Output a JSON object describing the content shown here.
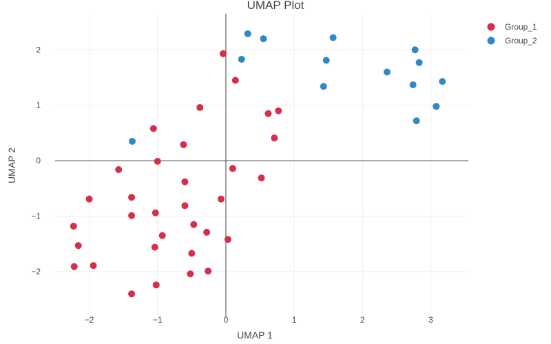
{
  "chart_data": {
    "type": "scatter",
    "title": "UMAP Plot",
    "xlabel": "UMAP 1",
    "ylabel": "UMAP 2",
    "xlim": [
      -2.5,
      3.55
    ],
    "ylim": [
      -2.82,
      2.65
    ],
    "xticks": [
      -2,
      -1,
      0,
      1,
      2,
      3
    ],
    "yticks": [
      -2,
      -1,
      0,
      1,
      2
    ],
    "xtick_labels": [
      "−2",
      "−1",
      "0",
      "1",
      "2",
      "3"
    ],
    "ytick_labels": [
      "−2",
      "−1",
      "0",
      "1",
      "2"
    ],
    "grid": true,
    "zero_lines": true,
    "legend_position": "top-right",
    "series": [
      {
        "name": "Group_1",
        "color": "#d62e4b",
        "points": [
          [
            -0.04,
            1.93
          ],
          [
            0.14,
            1.45
          ],
          [
            -0.38,
            0.96
          ],
          [
            0.62,
            0.85
          ],
          [
            0.77,
            0.9
          ],
          [
            -1.06,
            0.58
          ],
          [
            0.71,
            0.41
          ],
          [
            -0.62,
            0.29
          ],
          [
            -1.0,
            -0.01
          ],
          [
            -1.57,
            -0.16
          ],
          [
            0.1,
            -0.14
          ],
          [
            -0.6,
            -0.38
          ],
          [
            0.52,
            -0.31
          ],
          [
            -2.0,
            -0.69
          ],
          [
            -1.38,
            -0.66
          ],
          [
            -0.6,
            -0.81
          ],
          [
            -0.07,
            -0.69
          ],
          [
            -1.38,
            -0.99
          ],
          [
            -1.03,
            -0.94
          ],
          [
            -2.23,
            -1.18
          ],
          [
            -0.47,
            -1.15
          ],
          [
            -0.28,
            -1.29
          ],
          [
            -0.93,
            -1.35
          ],
          [
            0.03,
            -1.42
          ],
          [
            -2.16,
            -1.53
          ],
          [
            -1.04,
            -1.56
          ],
          [
            -0.5,
            -1.67
          ],
          [
            -2.22,
            -1.91
          ],
          [
            -1.94,
            -1.89
          ],
          [
            -0.52,
            -2.04
          ],
          [
            -0.26,
            -1.99
          ],
          [
            -1.02,
            -2.24
          ],
          [
            -1.38,
            -2.4
          ]
        ]
      },
      {
        "name": "Group_2",
        "color": "#2f8ac4",
        "points": [
          [
            0.32,
            2.29
          ],
          [
            0.55,
            2.2
          ],
          [
            1.57,
            2.22
          ],
          [
            0.23,
            1.83
          ],
          [
            1.47,
            1.81
          ],
          [
            2.77,
            2.0
          ],
          [
            2.83,
            1.77
          ],
          [
            2.36,
            1.6
          ],
          [
            1.43,
            1.34
          ],
          [
            2.74,
            1.37
          ],
          [
            3.17,
            1.43
          ],
          [
            3.08,
            0.98
          ],
          [
            2.79,
            0.72
          ],
          [
            -1.37,
            0.35
          ]
        ]
      }
    ]
  }
}
